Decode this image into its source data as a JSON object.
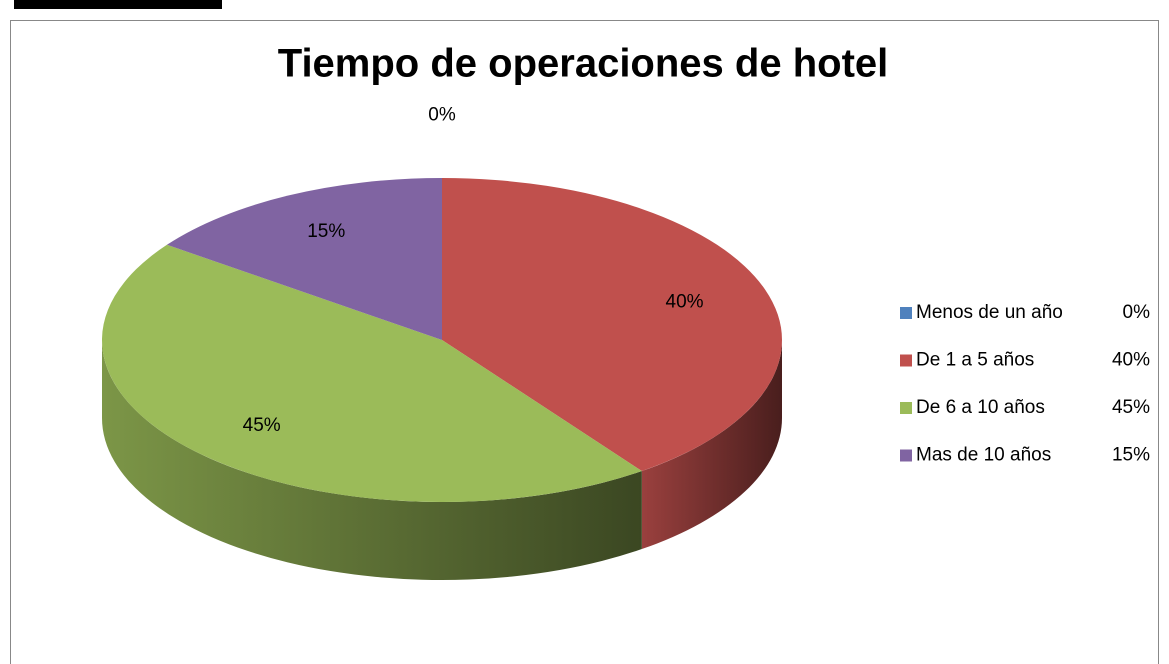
{
  "chart_data": {
    "type": "pie",
    "title": "Tiempo de operaciones de hotel",
    "categories": [
      "Menos de un año",
      "De 1 a 5 años",
      "De 6 a 10 años",
      "Mas de 10 años"
    ],
    "values": [
      0,
      40,
      45,
      15
    ],
    "value_labels": [
      "0%",
      "40%",
      "45%",
      "15%"
    ],
    "colors": [
      "#4f81bd",
      "#c0504d",
      "#9bbb59",
      "#8064a2"
    ],
    "legend": "right"
  }
}
